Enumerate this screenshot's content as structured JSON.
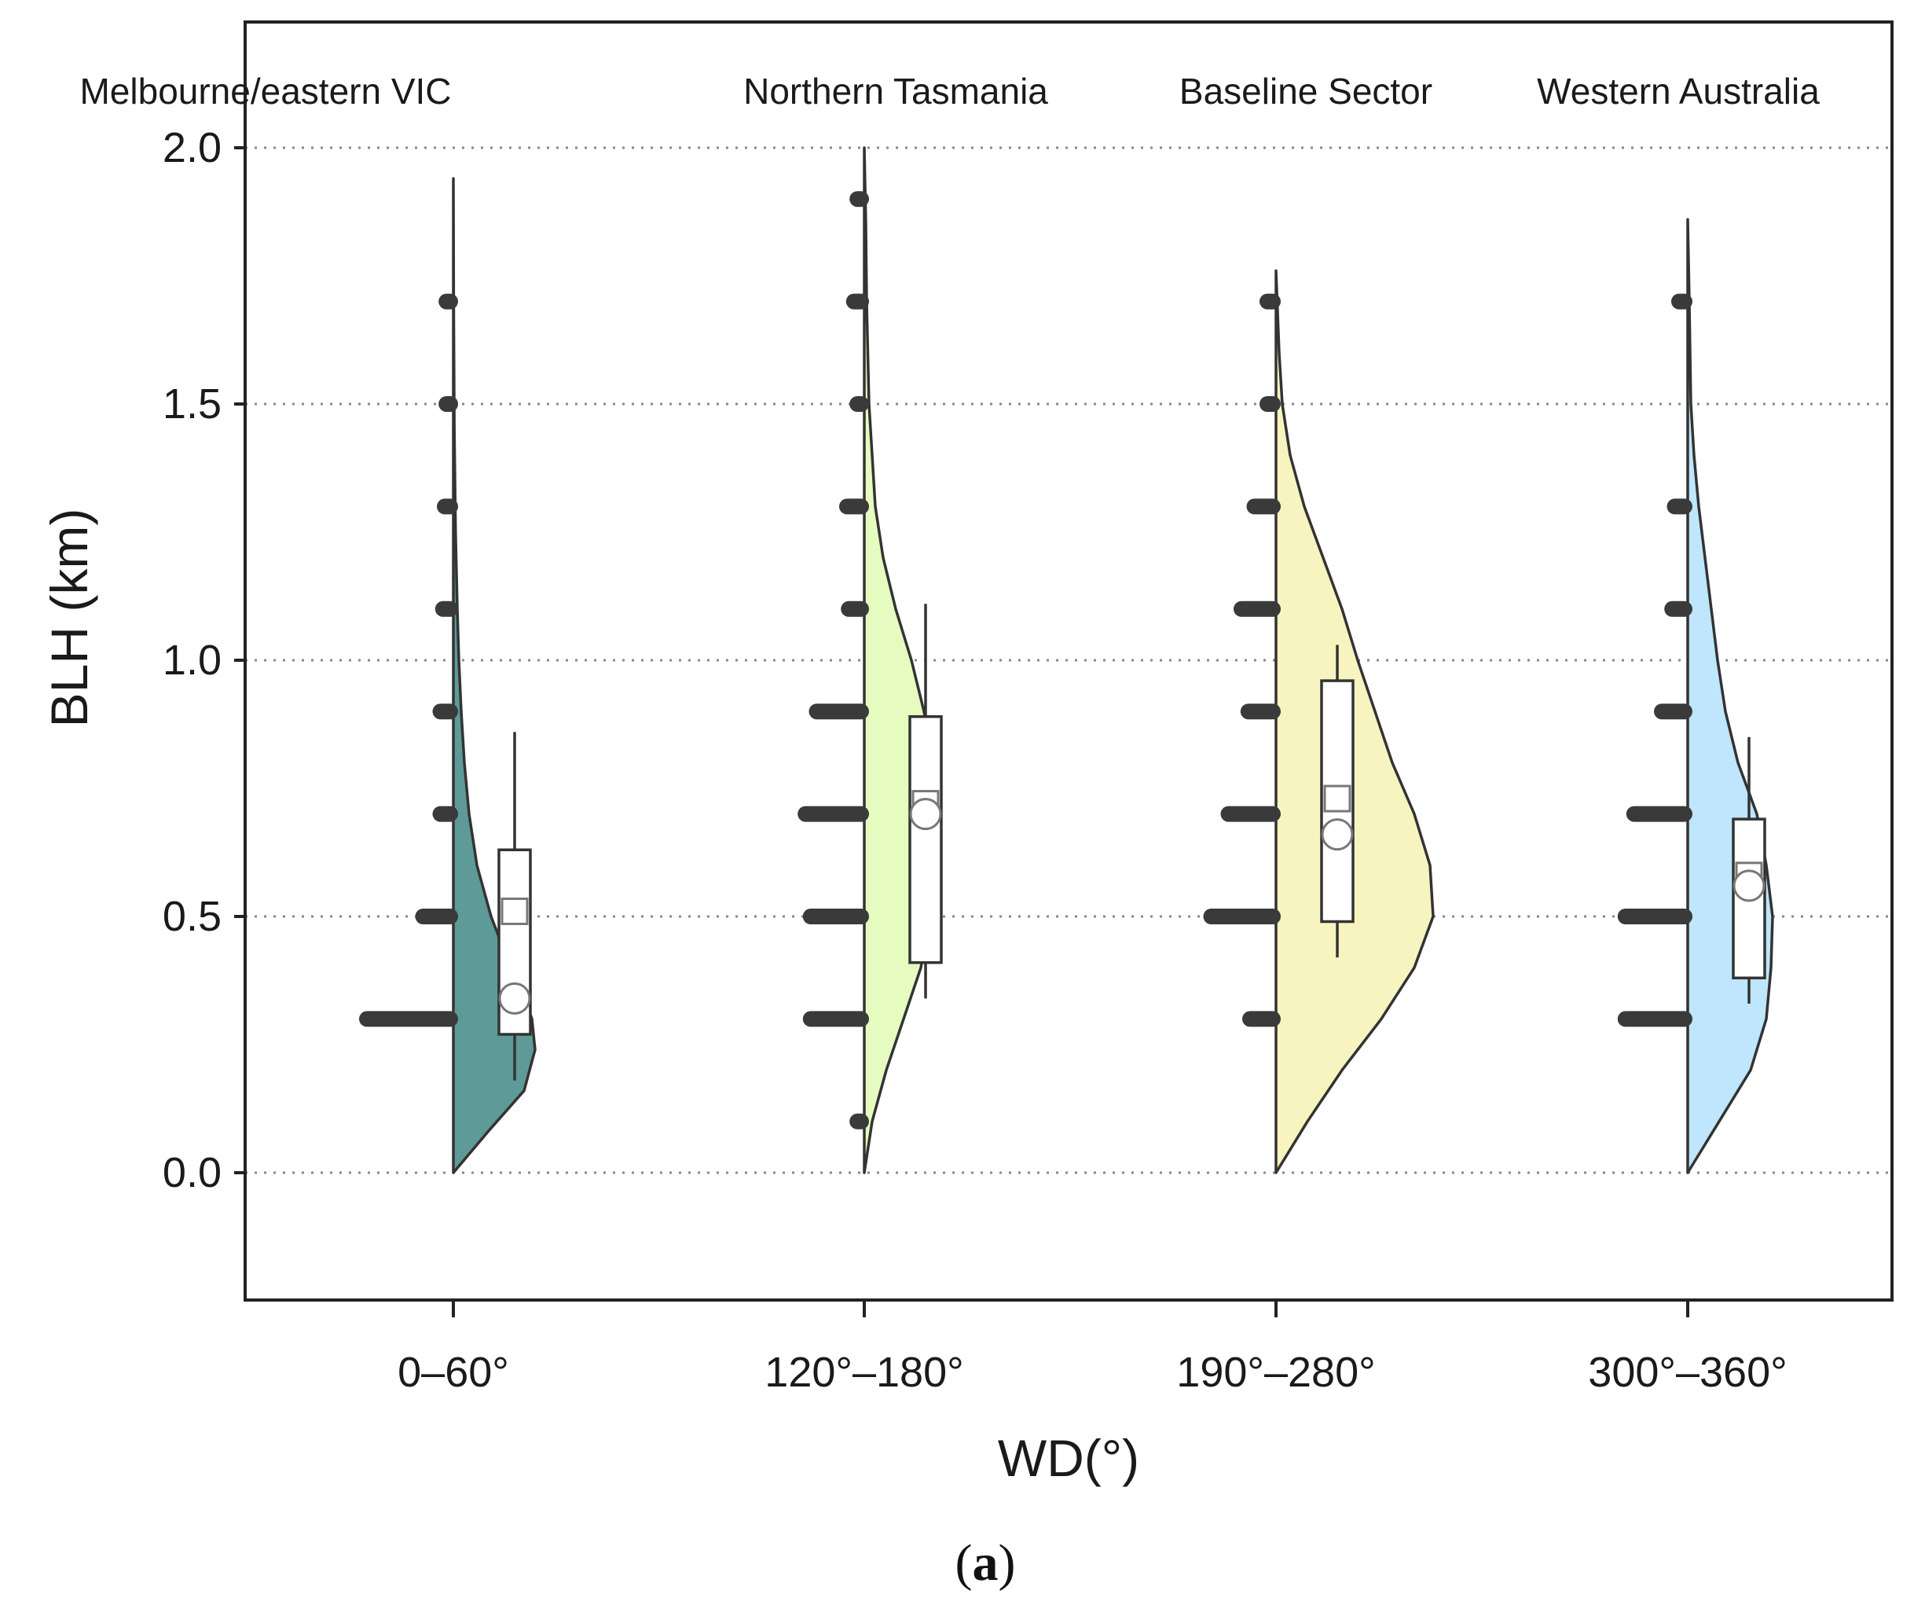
{
  "chart_data": {
    "type": "raincloud",
    "xlabel": "WD(°)",
    "ylabel": "BLH (km)",
    "ylim": [
      -0.25,
      2.25
    ],
    "yticks": [
      0.0,
      0.5,
      1.0,
      1.5,
      2.0
    ],
    "ytick_labels": [
      "0.0",
      "0.5",
      "1.0",
      "1.5",
      "2.0"
    ],
    "grid": "horizontal dotted",
    "caption_open": "(",
    "caption_letter": "a",
    "caption_close": ")",
    "groups": [
      {
        "category": "0–60°",
        "sector": "Melbourne/eastern VIC",
        "color": "#5e9a97",
        "density": [
          [
            0.0,
            0.0
          ],
          [
            0.08,
            0.22
          ],
          [
            0.16,
            0.45
          ],
          [
            0.24,
            0.52
          ],
          [
            0.3,
            0.5
          ],
          [
            0.36,
            0.43
          ],
          [
            0.42,
            0.34
          ],
          [
            0.5,
            0.24
          ],
          [
            0.6,
            0.15
          ],
          [
            0.7,
            0.1
          ],
          [
            0.8,
            0.07
          ],
          [
            0.9,
            0.05
          ],
          [
            1.0,
            0.035
          ],
          [
            1.1,
            0.025
          ],
          [
            1.25,
            0.014
          ],
          [
            1.45,
            0.006
          ],
          [
            1.7,
            0.002
          ],
          [
            1.94,
            0.0
          ]
        ],
        "points": [
          [
            0.3,
            1.0
          ],
          [
            0.5,
            0.35
          ],
          [
            0.7,
            0.15
          ],
          [
            0.9,
            0.15
          ],
          [
            1.1,
            0.12
          ],
          [
            1.3,
            0.1
          ],
          [
            1.5,
            0.08
          ],
          [
            1.7,
            0.08
          ]
        ],
        "box": {
          "q1": 0.27,
          "q3": 0.63,
          "whisker_low": 0.18,
          "whisker_high": 0.86,
          "mean": 0.51,
          "median": 0.34
        }
      },
      {
        "category": "120°–180°",
        "sector": "Northern Tasmania",
        "color": "#e6fbc0",
        "density": [
          [
            0.0,
            0.0
          ],
          [
            0.1,
            0.05
          ],
          [
            0.2,
            0.14
          ],
          [
            0.3,
            0.25
          ],
          [
            0.4,
            0.36
          ],
          [
            0.5,
            0.42
          ],
          [
            0.6,
            0.46
          ],
          [
            0.7,
            0.47
          ],
          [
            0.8,
            0.44
          ],
          [
            0.9,
            0.38
          ],
          [
            1.0,
            0.3
          ],
          [
            1.1,
            0.2
          ],
          [
            1.2,
            0.12
          ],
          [
            1.3,
            0.07
          ],
          [
            1.5,
            0.03
          ],
          [
            1.7,
            0.015
          ],
          [
            1.85,
            0.01
          ],
          [
            2.0,
            0.0
          ]
        ],
        "points": [
          [
            0.1,
            0.08
          ],
          [
            0.3,
            0.62
          ],
          [
            0.5,
            0.62
          ],
          [
            0.7,
            0.68
          ],
          [
            0.9,
            0.55
          ],
          [
            1.1,
            0.18
          ],
          [
            1.3,
            0.2
          ],
          [
            1.5,
            0.08
          ],
          [
            1.7,
            0.12
          ],
          [
            1.9,
            0.08
          ]
        ],
        "box": {
          "q1": 0.41,
          "q3": 0.89,
          "whisker_low": 0.34,
          "whisker_high": 1.11,
          "mean": 0.72,
          "median": 0.7
        }
      },
      {
        "category": "190°–280°",
        "sector": "Baseline Sector",
        "color": "#f8f4bf",
        "density": [
          [
            0.0,
            0.0
          ],
          [
            0.1,
            0.2
          ],
          [
            0.2,
            0.42
          ],
          [
            0.3,
            0.67
          ],
          [
            0.4,
            0.88
          ],
          [
            0.5,
            1.0
          ],
          [
            0.6,
            0.98
          ],
          [
            0.7,
            0.88
          ],
          [
            0.8,
            0.74
          ],
          [
            0.9,
            0.63
          ],
          [
            1.0,
            0.52
          ],
          [
            1.1,
            0.42
          ],
          [
            1.2,
            0.3
          ],
          [
            1.3,
            0.18
          ],
          [
            1.4,
            0.09
          ],
          [
            1.5,
            0.04
          ],
          [
            1.6,
            0.02
          ],
          [
            1.76,
            0.0
          ]
        ],
        "points": [
          [
            0.3,
            0.3
          ],
          [
            0.5,
            0.75
          ],
          [
            0.7,
            0.55
          ],
          [
            0.9,
            0.32
          ],
          [
            1.1,
            0.4
          ],
          [
            1.3,
            0.25
          ],
          [
            1.5,
            0.1
          ],
          [
            1.7,
            0.1
          ]
        ],
        "box": {
          "q1": 0.49,
          "q3": 0.96,
          "whisker_low": 0.42,
          "whisker_high": 1.03,
          "mean": 0.73,
          "median": 0.66
        }
      },
      {
        "category": "300°–360°",
        "sector": "Western Australia",
        "color": "#bfe6fc",
        "density": [
          [
            0.0,
            0.0
          ],
          [
            0.1,
            0.2
          ],
          [
            0.2,
            0.4
          ],
          [
            0.3,
            0.5
          ],
          [
            0.4,
            0.53
          ],
          [
            0.5,
            0.54
          ],
          [
            0.6,
            0.5
          ],
          [
            0.7,
            0.44
          ],
          [
            0.8,
            0.32
          ],
          [
            0.9,
            0.24
          ],
          [
            1.0,
            0.19
          ],
          [
            1.1,
            0.15
          ],
          [
            1.2,
            0.11
          ],
          [
            1.3,
            0.07
          ],
          [
            1.4,
            0.04
          ],
          [
            1.5,
            0.02
          ],
          [
            1.7,
            0.01
          ],
          [
            1.86,
            0.0
          ]
        ],
        "points": [
          [
            0.3,
            0.72
          ],
          [
            0.5,
            0.72
          ],
          [
            0.7,
            0.62
          ],
          [
            0.9,
            0.3
          ],
          [
            1.1,
            0.18
          ],
          [
            1.3,
            0.15
          ],
          [
            1.7,
            0.1
          ]
        ],
        "box": {
          "q1": 0.38,
          "q3": 0.69,
          "whisker_low": 0.33,
          "whisker_high": 0.85,
          "mean": 0.58,
          "median": 0.56
        }
      }
    ]
  }
}
